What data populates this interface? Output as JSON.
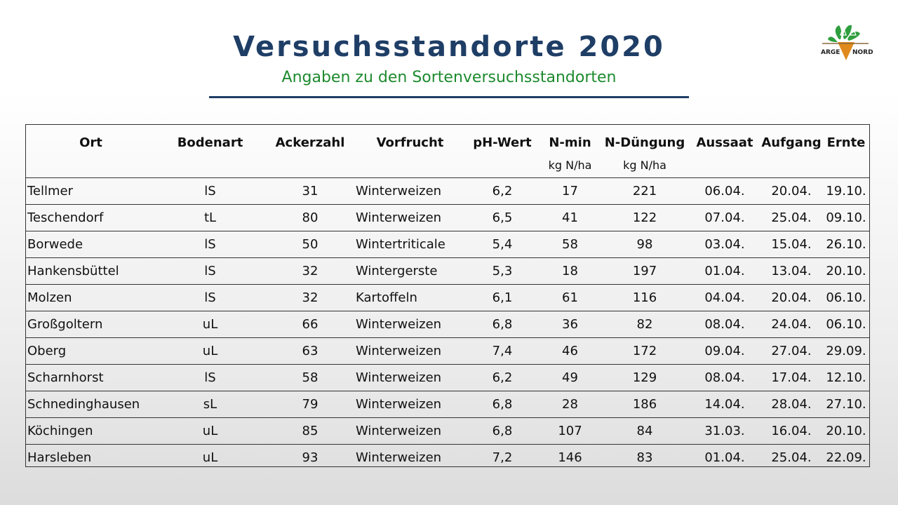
{
  "header": {
    "title": "Versuchsstandorte 2020",
    "subtitle": "Angaben zu den Sortenversuchsstandorten",
    "logo": {
      "text_left": "ARGE",
      "text_right": "NORD",
      "icon": "plant-logo-icon",
      "colors": {
        "green": "#2e9e3e",
        "orange": "#e08a1e",
        "dark": "#222222"
      }
    }
  },
  "table": {
    "columns": [
      "Ort",
      "Bodenart",
      "Ackerzahl",
      "Vorfrucht",
      "pH-Wert",
      "N-min",
      "N-Düngung",
      "Aussaat",
      "Aufgang",
      "Ernte"
    ],
    "units": [
      "",
      "",
      "",
      "",
      "",
      "kg N/ha",
      "kg N/ha",
      "",
      "",
      ""
    ],
    "rows": [
      [
        "Tellmer",
        "lS",
        "31",
        "Winterweizen",
        "6,2",
        "17",
        "221",
        "06.04.",
        "20.04.",
        "19.10."
      ],
      [
        "Teschendorf",
        "tL",
        "80",
        "Winterweizen",
        "6,5",
        "41",
        "122",
        "07.04.",
        "25.04.",
        "09.10."
      ],
      [
        "Borwede",
        "lS",
        "50",
        "Wintertriticale",
        "5,4",
        "58",
        "98",
        "03.04.",
        "15.04.",
        "26.10."
      ],
      [
        "Hankensbüttel",
        "lS",
        "32",
        "Wintergerste",
        "5,3",
        "18",
        "197",
        "01.04.",
        "13.04.",
        "20.10."
      ],
      [
        "Molzen",
        "lS",
        "32",
        "Kartoffeln",
        "6,1",
        "61",
        "116",
        "04.04.",
        "20.04.",
        "06.10."
      ],
      [
        "Großgoltern",
        "uL",
        "66",
        "Winterweizen",
        "6,8",
        "36",
        "82",
        "08.04.",
        "24.04.",
        "06.10."
      ],
      [
        "Oberg",
        "uL",
        "63",
        "Winterweizen",
        "7,4",
        "46",
        "172",
        "09.04.",
        "27.04.",
        "29.09."
      ],
      [
        "Scharnhorst",
        "lS",
        "58",
        "Winterweizen",
        "6,2",
        "49",
        "129",
        "08.04.",
        "17.04.",
        "12.10."
      ],
      [
        "Schnedinghausen",
        "sL",
        "79",
        "Winterweizen",
        "6,8",
        "28",
        "186",
        "14.04.",
        "28.04.",
        "27.10."
      ],
      [
        "Köchingen",
        "uL",
        "85",
        "Winterweizen",
        "6,8",
        "107",
        "84",
        "31.03.",
        "16.04.",
        "20.10."
      ],
      [
        "Harsleben",
        "uL",
        "93",
        "Winterweizen",
        "7,2",
        "146",
        "83",
        "01.04.",
        "25.04.",
        "22.09."
      ]
    ]
  }
}
